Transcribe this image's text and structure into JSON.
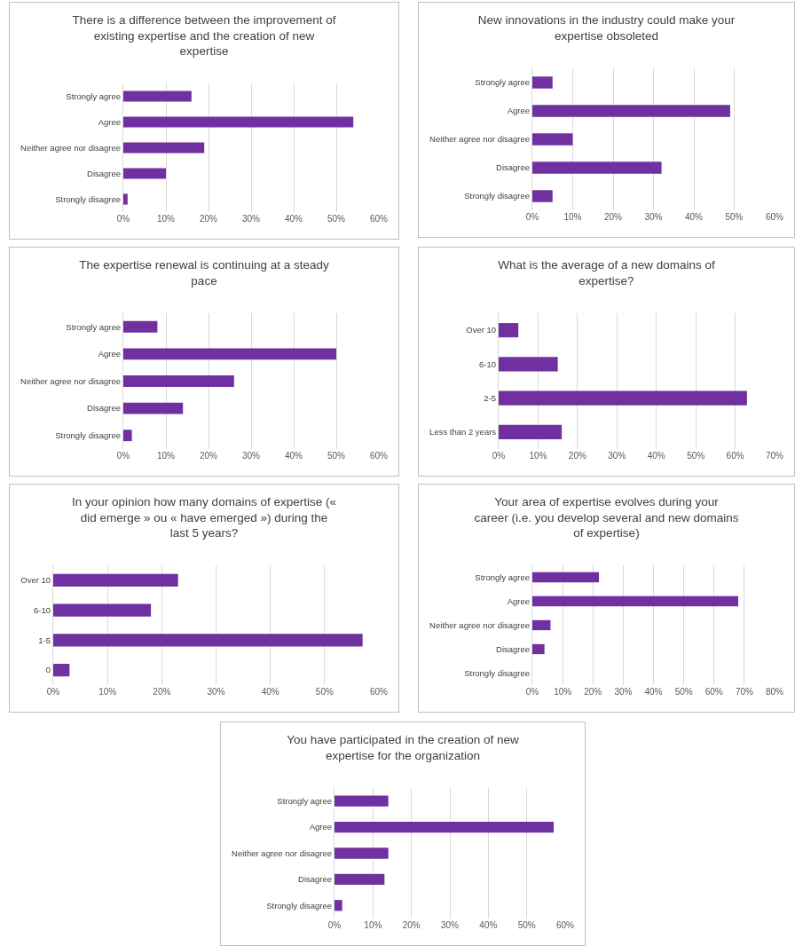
{
  "chart_data": [
    {
      "type": "bar",
      "orientation": "horizontal",
      "title": "There is a difference between the improvement of existing expertise and the creation of new expertise",
      "categories": [
        "Strongly agree",
        "Agree",
        "Neither agree nor disagree",
        "Disagree",
        "Strongly disagree"
      ],
      "values": [
        16,
        54,
        19,
        10,
        1
      ],
      "color": "#7030a0",
      "xlim": [
        0,
        60
      ],
      "xticks": [
        {
          "value": 0,
          "label": "0%"
        },
        {
          "value": 10,
          "label": "10%"
        },
        {
          "value": 20,
          "label": "20%"
        },
        {
          "value": 30,
          "label": "30%"
        },
        {
          "value": 40,
          "label": "40%"
        },
        {
          "value": 50,
          "label": "50%"
        },
        {
          "value": 60,
          "label": "60%"
        }
      ],
      "grid": "x"
    },
    {
      "type": "bar",
      "orientation": "horizontal",
      "title": "New innovations in the industry could make your expertise obsoleted",
      "categories": [
        "Strongly agree",
        "Agree",
        "Neither agree nor disagree",
        "Disagree",
        "Strongly disagree"
      ],
      "values": [
        5,
        49,
        10,
        32,
        5
      ],
      "color": "#7030a0",
      "xlim": [
        0,
        60
      ],
      "xticks": [
        {
          "value": 0,
          "label": "0%"
        },
        {
          "value": 10,
          "label": "10%"
        },
        {
          "value": 20,
          "label": "20%"
        },
        {
          "value": 30,
          "label": "30%"
        },
        {
          "value": 40,
          "label": "40%"
        },
        {
          "value": 50,
          "label": "50%"
        },
        {
          "value": 60,
          "label": "60%"
        }
      ],
      "grid": "x"
    },
    {
      "type": "bar",
      "orientation": "horizontal",
      "title": "The expertise renewal is continuing at a steady pace",
      "categories": [
        "Strongly agree",
        "Agree",
        "Neither agree nor disagree",
        "Disagree",
        "Strongly disagree"
      ],
      "values": [
        8,
        50,
        26,
        14,
        2
      ],
      "color": "#7030a0",
      "xlim": [
        0,
        60
      ],
      "xticks": [
        {
          "value": 0,
          "label": "0%"
        },
        {
          "value": 10,
          "label": "10%"
        },
        {
          "value": 20,
          "label": "20%"
        },
        {
          "value": 30,
          "label": "30%"
        },
        {
          "value": 40,
          "label": "40%"
        },
        {
          "value": 50,
          "label": "50%"
        },
        {
          "value": 60,
          "label": "60%"
        }
      ],
      "grid": "x"
    },
    {
      "type": "bar",
      "orientation": "horizontal",
      "title": "What is the average of a new domains of expertise?",
      "categories": [
        "Over 10",
        "6-10",
        "2-5",
        "Less than 2 years"
      ],
      "values": [
        5,
        15,
        63,
        16
      ],
      "color": "#7030a0",
      "xlim": [
        0,
        70
      ],
      "xticks": [
        {
          "value": 0,
          "label": "0%"
        },
        {
          "value": 10,
          "label": "10%"
        },
        {
          "value": 20,
          "label": "20%"
        },
        {
          "value": 30,
          "label": "30%"
        },
        {
          "value": 40,
          "label": "40%"
        },
        {
          "value": 50,
          "label": "50%"
        },
        {
          "value": 60,
          "label": "60%"
        },
        {
          "value": 70,
          "label": "70%"
        }
      ],
      "grid": "x"
    },
    {
      "type": "bar",
      "orientation": "horizontal",
      "title": "In your opinion how many domains of expertise (« did emerge » ou « have emerged ») during the last 5 years?",
      "categories": [
        "Over 10",
        "6-10",
        "1-5",
        "0"
      ],
      "values": [
        23,
        18,
        57,
        3
      ],
      "color": "#7030a0",
      "xlim": [
        0,
        60
      ],
      "xticks": [
        {
          "value": 0,
          "label": "0%"
        },
        {
          "value": 10,
          "label": "10%"
        },
        {
          "value": 20,
          "label": "20%"
        },
        {
          "value": 30,
          "label": "30%"
        },
        {
          "value": 40,
          "label": "40%"
        },
        {
          "value": 50,
          "label": "50%"
        },
        {
          "value": 60,
          "label": "60%"
        }
      ],
      "grid": "x"
    },
    {
      "type": "bar",
      "orientation": "horizontal",
      "title": "Your area of expertise evolves during your career (i.e. you develop several and new domains of expertise)",
      "categories": [
        "Strongly agree",
        "Agree",
        "Neither agree nor disagree",
        "Disagree",
        "Strongly disagree"
      ],
      "values": [
        22,
        68,
        6,
        4,
        0
      ],
      "color": "#7030a0",
      "xlim": [
        0,
        80
      ],
      "xticks": [
        {
          "value": 0,
          "label": "0%"
        },
        {
          "value": 10,
          "label": "10%"
        },
        {
          "value": 20,
          "label": "20%"
        },
        {
          "value": 30,
          "label": "30%"
        },
        {
          "value": 40,
          "label": "40%"
        },
        {
          "value": 50,
          "label": "50%"
        },
        {
          "value": 60,
          "label": "60%"
        },
        {
          "value": 70,
          "label": "70%"
        },
        {
          "value": 80,
          "label": "80%"
        }
      ],
      "grid": "x"
    },
    {
      "type": "bar",
      "orientation": "horizontal",
      "title": "You have participated in the creation of new expertise for the organization",
      "categories": [
        "Strongly agree",
        "Agree",
        "Neither agree nor disagree",
        "Disagree",
        "Strongly disagree"
      ],
      "values": [
        14,
        57,
        14,
        13,
        2
      ],
      "color": "#7030a0",
      "xlim": [
        0,
        60
      ],
      "xticks": [
        {
          "value": 0,
          "label": "0%"
        },
        {
          "value": 10,
          "label": "10%"
        },
        {
          "value": 20,
          "label": "20%"
        },
        {
          "value": 30,
          "label": "30%"
        },
        {
          "value": 40,
          "label": "40%"
        },
        {
          "value": 50,
          "label": "50%"
        },
        {
          "value": 60,
          "label": "60%"
        }
      ],
      "grid": "x"
    }
  ]
}
